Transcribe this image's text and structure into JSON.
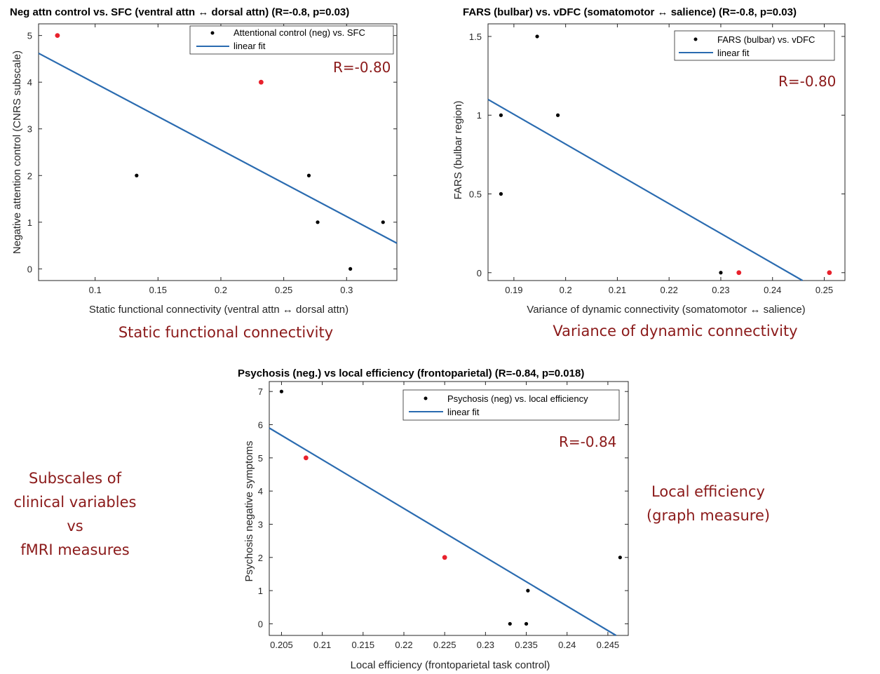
{
  "colors": {
    "fit_line": "#2a6bb0",
    "point_default": "#000000",
    "point_highlight": "#e8212c",
    "annotation": "#8b1a1a"
  },
  "captions": {
    "sfc": "Static functional connectivity",
    "vdfc": "Variance of dynamic connectivity",
    "left_lines": [
      "Subscales of",
      "clinical variables",
      "vs",
      "fMRI measures"
    ],
    "right_lines": [
      "Local efficiency",
      "(graph measure)"
    ]
  },
  "chart_data": [
    {
      "type": "scatter",
      "title": "Neg attn control vs. SFC (ventral attn ↔ dorsal attn) (R=-0.8, p=0.03)",
      "xlabel": "Static functional connectivity (ventral attn ↔ dorsal attn)",
      "ylabel": "Negative attention control (CNRS subscale)",
      "xlim": [
        0.055,
        0.34
      ],
      "ylim": [
        -0.25,
        5.25
      ],
      "xticks": [
        0.1,
        0.15,
        0.2,
        0.25,
        0.3
      ],
      "xtick_labels": [
        "0.1",
        "0.15",
        "0.2",
        "0.25",
        "0.3"
      ],
      "yticks": [
        0,
        1,
        2,
        3,
        4,
        5
      ],
      "ytick_labels": [
        "0",
        "1",
        "2",
        "3",
        "4",
        "5"
      ],
      "legend": [
        "Attentional control (neg) vs. SFC",
        "linear fit"
      ],
      "legend_position": "top-right",
      "annotation": "R=-0.80",
      "points": [
        {
          "x": 0.07,
          "y": 5,
          "highlight": true
        },
        {
          "x": 0.133,
          "y": 2,
          "highlight": false
        },
        {
          "x": 0.232,
          "y": 4,
          "highlight": true
        },
        {
          "x": 0.27,
          "y": 2,
          "highlight": false
        },
        {
          "x": 0.277,
          "y": 1,
          "highlight": false
        },
        {
          "x": 0.303,
          "y": 0,
          "highlight": false
        },
        {
          "x": 0.329,
          "y": 1,
          "highlight": false
        }
      ],
      "fit": {
        "x": [
          0.055,
          0.34
        ],
        "y": [
          4.62,
          0.55
        ]
      }
    },
    {
      "type": "scatter",
      "title": "FARS (bulbar) vs. vDFC (somatomotor ↔ salience) (R=-0.8, p=0.03)",
      "xlabel": "Variance of dynamic connectivity (somatomotor ↔ salience)",
      "ylabel": "FARS (bulbar region)",
      "xlim": [
        0.185,
        0.254
      ],
      "ylim": [
        -0.05,
        1.58
      ],
      "xticks": [
        0.19,
        0.2,
        0.21,
        0.22,
        0.23,
        0.24,
        0.25
      ],
      "xtick_labels": [
        "0.19",
        "0.2",
        "0.21",
        "0.22",
        "0.23",
        "0.24",
        "0.25"
      ],
      "yticks": [
        0,
        0.5,
        1,
        1.5
      ],
      "ytick_labels": [
        "0",
        "0.5",
        "1",
        "1.5"
      ],
      "legend": [
        "FARS (bulbar) vs. vDFC",
        "linear fit"
      ],
      "legend_position": "top-right",
      "annotation": "R=-0.80",
      "points": [
        {
          "x": 0.1875,
          "y": 1,
          "highlight": false
        },
        {
          "x": 0.1875,
          "y": 0.5,
          "highlight": false
        },
        {
          "x": 0.1945,
          "y": 1.5,
          "highlight": false
        },
        {
          "x": 0.1985,
          "y": 1,
          "highlight": false
        },
        {
          "x": 0.23,
          "y": 0,
          "highlight": false
        },
        {
          "x": 0.2335,
          "y": 0,
          "highlight": true
        },
        {
          "x": 0.251,
          "y": 0,
          "highlight": true
        }
      ],
      "fit": {
        "x": [
          0.185,
          0.2458
        ],
        "y": [
          1.1,
          -0.05
        ]
      }
    },
    {
      "type": "scatter",
      "title": "Psychosis (neg.) vs local efficiency (frontoparietal) (R=-0.84, p=0.018)",
      "xlabel": "Local efficiency (frontoparietal task control)",
      "ylabel": "Psychosis negative symptoms",
      "xlim": [
        0.2035,
        0.2475
      ],
      "ylim": [
        -0.35,
        7.3
      ],
      "xticks": [
        0.205,
        0.21,
        0.215,
        0.22,
        0.225,
        0.23,
        0.235,
        0.24,
        0.245
      ],
      "xtick_labels": [
        "0.205",
        "0.21",
        "0.215",
        "0.22",
        "0.225",
        "0.23",
        "0.235",
        "0.24",
        "0.245"
      ],
      "yticks": [
        0,
        1,
        2,
        3,
        4,
        5,
        6,
        7
      ],
      "ytick_labels": [
        "0",
        "1",
        "2",
        "3",
        "4",
        "5",
        "6",
        "7"
      ],
      "legend": [
        "Psychosis (neg) vs. local efficiency",
        "linear fit"
      ],
      "legend_position": "top-right",
      "annotation": "R=-0.84",
      "points": [
        {
          "x": 0.205,
          "y": 7,
          "highlight": false
        },
        {
          "x": 0.208,
          "y": 5,
          "highlight": true
        },
        {
          "x": 0.225,
          "y": 2,
          "highlight": true
        },
        {
          "x": 0.233,
          "y": 0,
          "highlight": false
        },
        {
          "x": 0.235,
          "y": 0,
          "highlight": false
        },
        {
          "x": 0.2352,
          "y": 1,
          "highlight": false
        },
        {
          "x": 0.2465,
          "y": 2,
          "highlight": false
        }
      ],
      "fit": {
        "x": [
          0.2035,
          0.246
        ],
        "y": [
          5.9,
          -0.35
        ]
      }
    }
  ]
}
